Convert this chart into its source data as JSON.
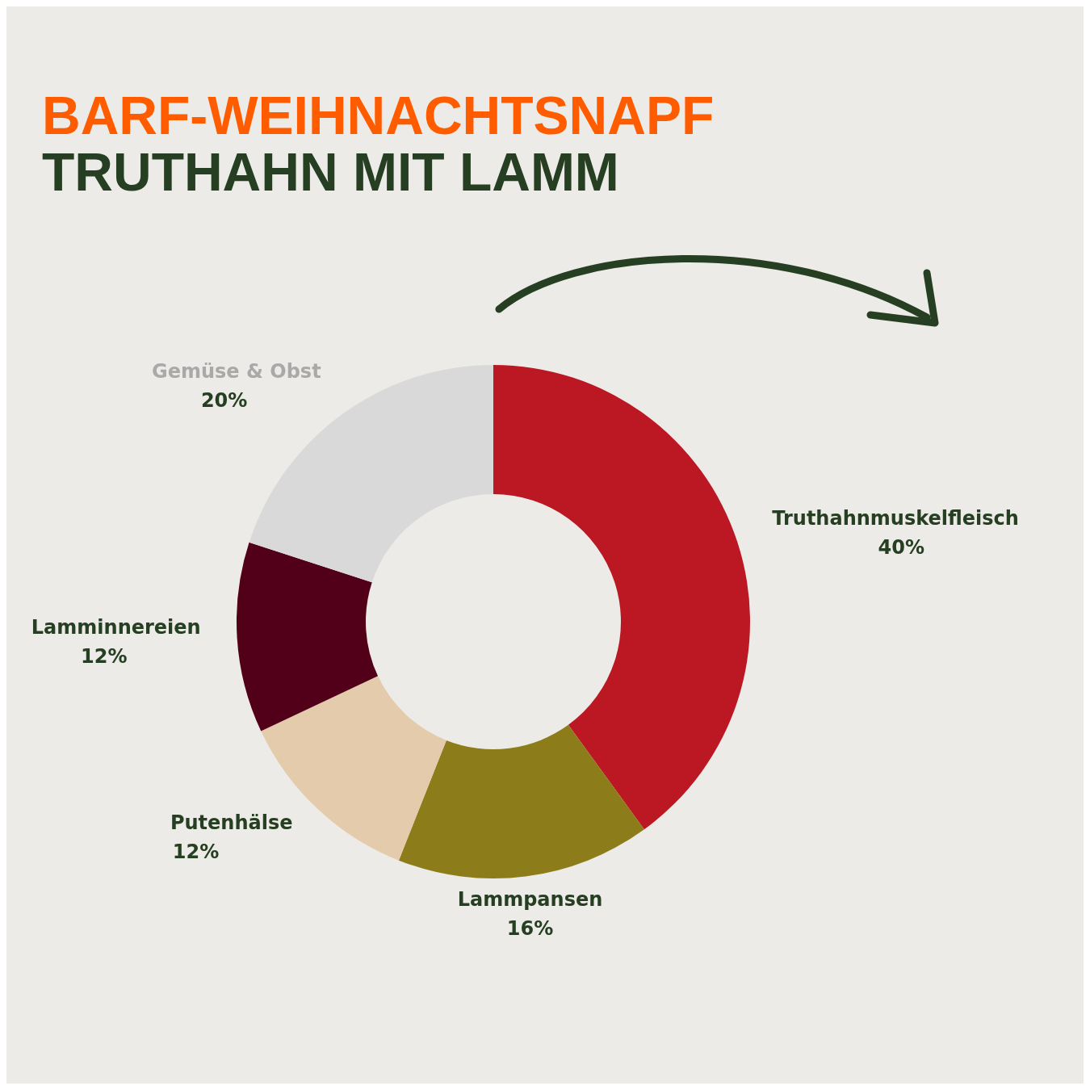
{
  "chart_data": {
    "type": "donut",
    "title": "BARF-WEIHNACHTSNAPF",
    "subtitle": "TRUTHAHN MIT LAMM",
    "categories": [
      "Truthahnmuskelfleisch",
      "Lammpansen",
      "Putenhälse",
      "Lamminnereien",
      "Gemüse & Obst"
    ],
    "values": [
      40,
      16,
      12,
      12,
      20
    ],
    "colors": [
      "#bb1823",
      "#8d7d1a",
      "#e3cbab",
      "#52001a",
      "#d9d9d9"
    ],
    "value_labels": [
      "40%",
      "16%",
      "12%",
      "12%",
      "20%"
    ]
  }
}
